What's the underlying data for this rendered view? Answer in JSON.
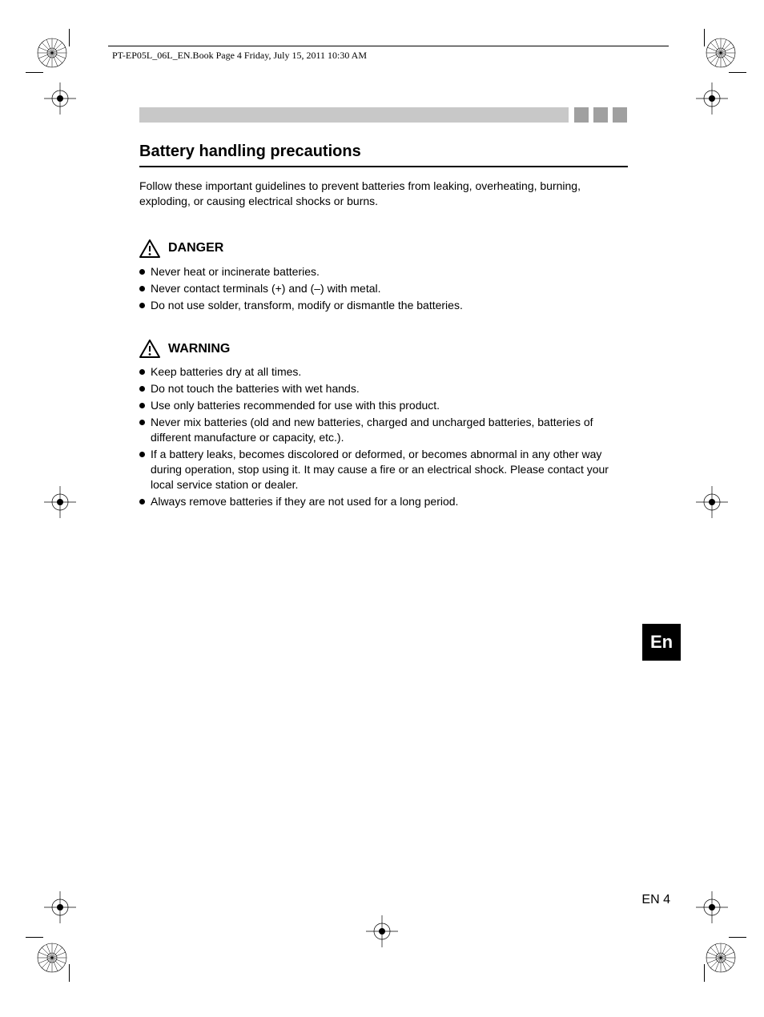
{
  "header": {
    "runningHead": "PT-EP05L_06L_EN.Book  Page 4  Friday, July 15, 2011  10:30 AM"
  },
  "decorations": {
    "graySquarePositions": [
      717,
      741,
      765
    ],
    "colors": {
      "barGray": "#c8c8c8",
      "squareGray": "#a0a0a0",
      "text": "#000000",
      "background": "#ffffff"
    }
  },
  "title": "Battery handling precautions",
  "intro": "Follow these important guidelines to prevent batteries from leaking, overheating, burning, exploding, or causing electrical shocks or burns.",
  "sections": [
    {
      "id": "danger",
      "label": "DANGER",
      "items": [
        "Never heat or incinerate batteries.",
        "Never contact terminals (+) and (–) with metal.",
        "Do not use solder, transform, modify or dismantle the batteries."
      ]
    },
    {
      "id": "warning",
      "label": "WARNING",
      "items": [
        "Keep batteries dry at all times.",
        "Do not touch the batteries with wet hands.",
        "Use only batteries recommended for use with this product.",
        "Never mix batteries (old and new batteries, charged and uncharged batteries, batteries of different manufacture or capacity, etc.).",
        "If a battery leaks, becomes discolored or deformed, or becomes abnormal in any other way during operation, stop using it. It may cause a fire or an electrical shock. Please contact your local service station or dealer.",
        "Always remove batteries if they are not used for a long period."
      ]
    }
  ],
  "langTab": "En",
  "pageNumber": "EN 4"
}
